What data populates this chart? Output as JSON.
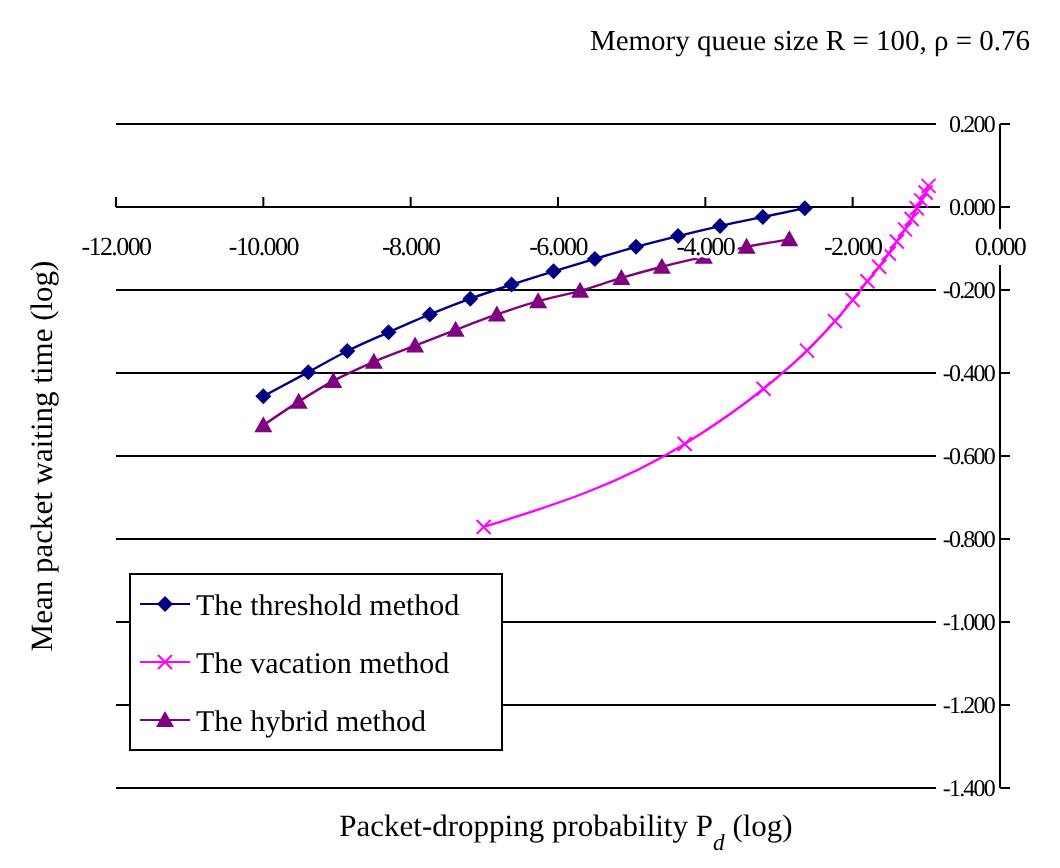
{
  "chart_data": {
    "type": "line",
    "title": "Memory queue size R = 100,  ρ = 0.76",
    "xlabel": "Packet-dropping probability P$_{d}$ (log)",
    "ylabel": "Mean packet waiting time (log)",
    "xlim": [
      -12,
      0
    ],
    "xticks": [
      {
        "value": -12,
        "label": "-12.000"
      },
      {
        "value": -10,
        "label": "-10.000"
      },
      {
        "value": -8,
        "label": "-8.000"
      },
      {
        "value": -6,
        "label": "-6.000"
      },
      {
        "value": -4,
        "label": "-4.000"
      },
      {
        "value": -2,
        "label": "-2.000"
      },
      {
        "value": 0,
        "label": "0.000"
      }
    ],
    "ylim": [
      -1.4,
      0.2
    ],
    "yticks": [
      {
        "value": 0.2,
        "label": "0.200"
      },
      {
        "value": 0,
        "label": "0.000"
      },
      {
        "value": -0.2,
        "label": "-0.200"
      },
      {
        "value": -0.4,
        "label": "-0.400"
      },
      {
        "value": -0.6,
        "label": "-0.600"
      },
      {
        "value": -0.8,
        "label": "-0.800"
      },
      {
        "value": -1,
        "label": "-1.000"
      },
      {
        "value": -1.2,
        "label": "-1.200"
      },
      {
        "value": -1.4,
        "label": "-1.400"
      }
    ],
    "grid": "y",
    "legend": "bottom left",
    "series": [
      {
        "name": "The threshold method",
        "color": "#000080",
        "marker": "diamond",
        "x": [
          -10,
          -9.39,
          -8.86,
          -8.3,
          -7.74,
          -7.19,
          -6.63,
          -6.06,
          -5.5,
          -4.94,
          -4.37,
          -3.8,
          -3.22,
          -2.65
        ],
        "values": [
          -0.456,
          -0.398,
          -0.347,
          -0.302,
          -0.259,
          -0.221,
          -0.187,
          -0.155,
          -0.125,
          -0.096,
          -0.07,
          -0.046,
          -0.024,
          -0.003
        ]
      },
      {
        "name": "The vacation method",
        "color": "#ff00ff",
        "marker": "cross",
        "x": [
          -7.01,
          -4.28,
          -3.21,
          -2.62,
          -2.24,
          -2.0,
          -1.8,
          -1.64,
          -1.51,
          -1.4,
          -1.29,
          -1.2,
          -1.13,
          -1.07,
          -1.01,
          -0.97
        ],
        "values": [
          -0.771,
          -0.571,
          -0.438,
          -0.346,
          -0.275,
          -0.224,
          -0.179,
          -0.144,
          -0.112,
          -0.083,
          -0.054,
          -0.029,
          -0.003,
          0.016,
          0.035,
          0.051
        ]
      },
      {
        "name": "The hybrid method",
        "color": "#800080",
        "marker": "triangle",
        "x": [
          -10,
          -9.52,
          -9.05,
          -8.5,
          -7.94,
          -7.39,
          -6.83,
          -6.27,
          -5.7,
          -5.14,
          -4.59,
          -4.02,
          -3.44,
          -2.86
        ],
        "values": [
          -0.526,
          -0.469,
          -0.419,
          -0.373,
          -0.334,
          -0.296,
          -0.259,
          -0.227,
          -0.202,
          -0.171,
          -0.144,
          -0.12,
          -0.096,
          -0.078
        ]
      }
    ]
  }
}
